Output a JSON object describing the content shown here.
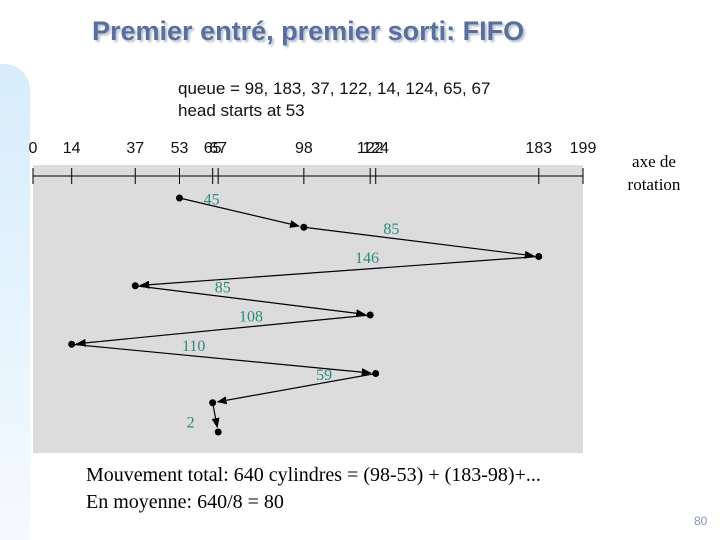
{
  "slide": {
    "title": "Premier entré, premier sorti: FIFO",
    "page_number": "80"
  },
  "figure": {
    "queue_line": "queue = 98, 183, 37, 122, 14, 124, 65, 67",
    "head_line": "head starts at 53",
    "axis_ticks": [
      {
        "cylinder": 0,
        "label": "0"
      },
      {
        "cylinder": 14,
        "label": "14"
      },
      {
        "cylinder": 37,
        "label": "37"
      },
      {
        "cylinder": 53,
        "label": "53"
      },
      {
        "cylinder": 65,
        "label": "65"
      },
      {
        "cylinder": 67,
        "label": "67"
      },
      {
        "cylinder": 98,
        "label": "98"
      },
      {
        "cylinder": 122,
        "label": "122"
      },
      {
        "cylinder": 124,
        "label": "124"
      },
      {
        "cylinder": 183,
        "label": "183"
      },
      {
        "cylinder": 199,
        "label": "199"
      }
    ],
    "head_path": [
      53,
      98,
      183,
      37,
      122,
      14,
      124,
      65,
      67
    ],
    "move_labels": [
      "45",
      "85",
      "146",
      "85",
      "108",
      "110",
      "59",
      "2"
    ],
    "axis_note": "axe de rotation",
    "colors": {
      "panel": "#dcdcdc",
      "annotation": "#2e8b7a",
      "line": "#000000"
    }
  },
  "summary": {
    "line1": "Mouvement total: 640 cylindres = (98-53) + (183-98)+...",
    "line2": "En moyenne: 640/8 = 80"
  }
}
